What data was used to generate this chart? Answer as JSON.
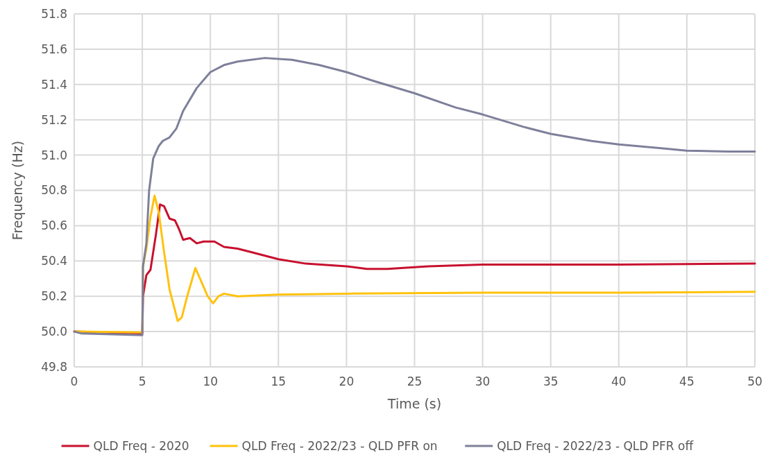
{
  "chart_data": {
    "type": "line",
    "xlabel": "Time (s)",
    "ylabel": "Frequency (Hz)",
    "xlim": [
      0,
      50
    ],
    "xticks": [
      0,
      5,
      10,
      15,
      20,
      25,
      30,
      35,
      40,
      45,
      50
    ],
    "ylim": [
      49.8,
      51.8
    ],
    "yticks": [
      {
        "value": 49.8,
        "label": "49.8"
      },
      {
        "value": 50,
        "label": "50.0"
      },
      50.2,
      50.4,
      50.6,
      50.8,
      {
        "value": 51,
        "label": "51.0"
      },
      51.2,
      51.4,
      51.6,
      51.8
    ],
    "grid": true,
    "legend": "bottom",
    "marker": "none",
    "line_style": "solid",
    "series": [
      {
        "name": "QLD Freq - 2020",
        "color": "#c8102e",
        "x": [
          0,
          5,
          5.05,
          5.3,
          5.6,
          6,
          6.3,
          6.6,
          7,
          7.4,
          7.7,
          8,
          8.5,
          9,
          9.5,
          10.3,
          11,
          12,
          13,
          15,
          17,
          20,
          21.5,
          23,
          26,
          30,
          40,
          50
        ],
        "values": [
          50,
          49.99,
          50.2,
          50.32,
          50.35,
          50.55,
          50.72,
          50.71,
          50.64,
          50.63,
          50.58,
          50.52,
          50.53,
          50.5,
          50.51,
          50.51,
          50.48,
          50.47,
          50.45,
          50.41,
          50.385,
          50.37,
          50.355,
          50.355,
          50.37,
          50.38,
          50.38,
          50.385
        ]
      },
      {
        "name": "QLD Freq - 2022/23 - QLD PFR on",
        "color": "#ffc20e",
        "x": [
          0,
          5,
          5.05,
          5.3,
          5.6,
          5.9,
          6.2,
          6.6,
          7,
          7.3,
          7.6,
          7.9,
          8.3,
          8.9,
          9.3,
          9.8,
          10.2,
          10.6,
          11,
          12,
          15,
          20,
          30,
          40,
          50
        ],
        "values": [
          50,
          49.995,
          50.37,
          50.47,
          50.65,
          50.77,
          50.68,
          50.45,
          50.24,
          50.15,
          50.06,
          50.08,
          50.2,
          50.36,
          50.29,
          50.2,
          50.16,
          50.2,
          50.215,
          50.2,
          50.21,
          50.215,
          50.22,
          50.22,
          50.225
        ]
      },
      {
        "name": "QLD Freq - 2022/23 - QLD PFR off",
        "color": "#7e809a",
        "x": [
          0,
          0.5,
          5,
          5.05,
          5.3,
          5.5,
          5.8,
          6.2,
          6.5,
          7,
          7.5,
          8,
          9,
          10,
          11,
          12,
          14,
          16,
          18,
          20,
          22,
          25,
          28,
          30,
          33,
          35,
          38,
          40,
          43,
          45,
          48,
          50
        ],
        "values": [
          50,
          49.99,
          49.98,
          50.37,
          50.5,
          50.8,
          50.98,
          51.05,
          51.08,
          51.1,
          51.15,
          51.25,
          51.38,
          51.47,
          51.51,
          51.53,
          51.55,
          51.54,
          51.51,
          51.47,
          51.42,
          51.35,
          51.27,
          51.23,
          51.16,
          51.12,
          51.08,
          51.06,
          51.04,
          51.025,
          51.02,
          51.02
        ]
      }
    ]
  }
}
